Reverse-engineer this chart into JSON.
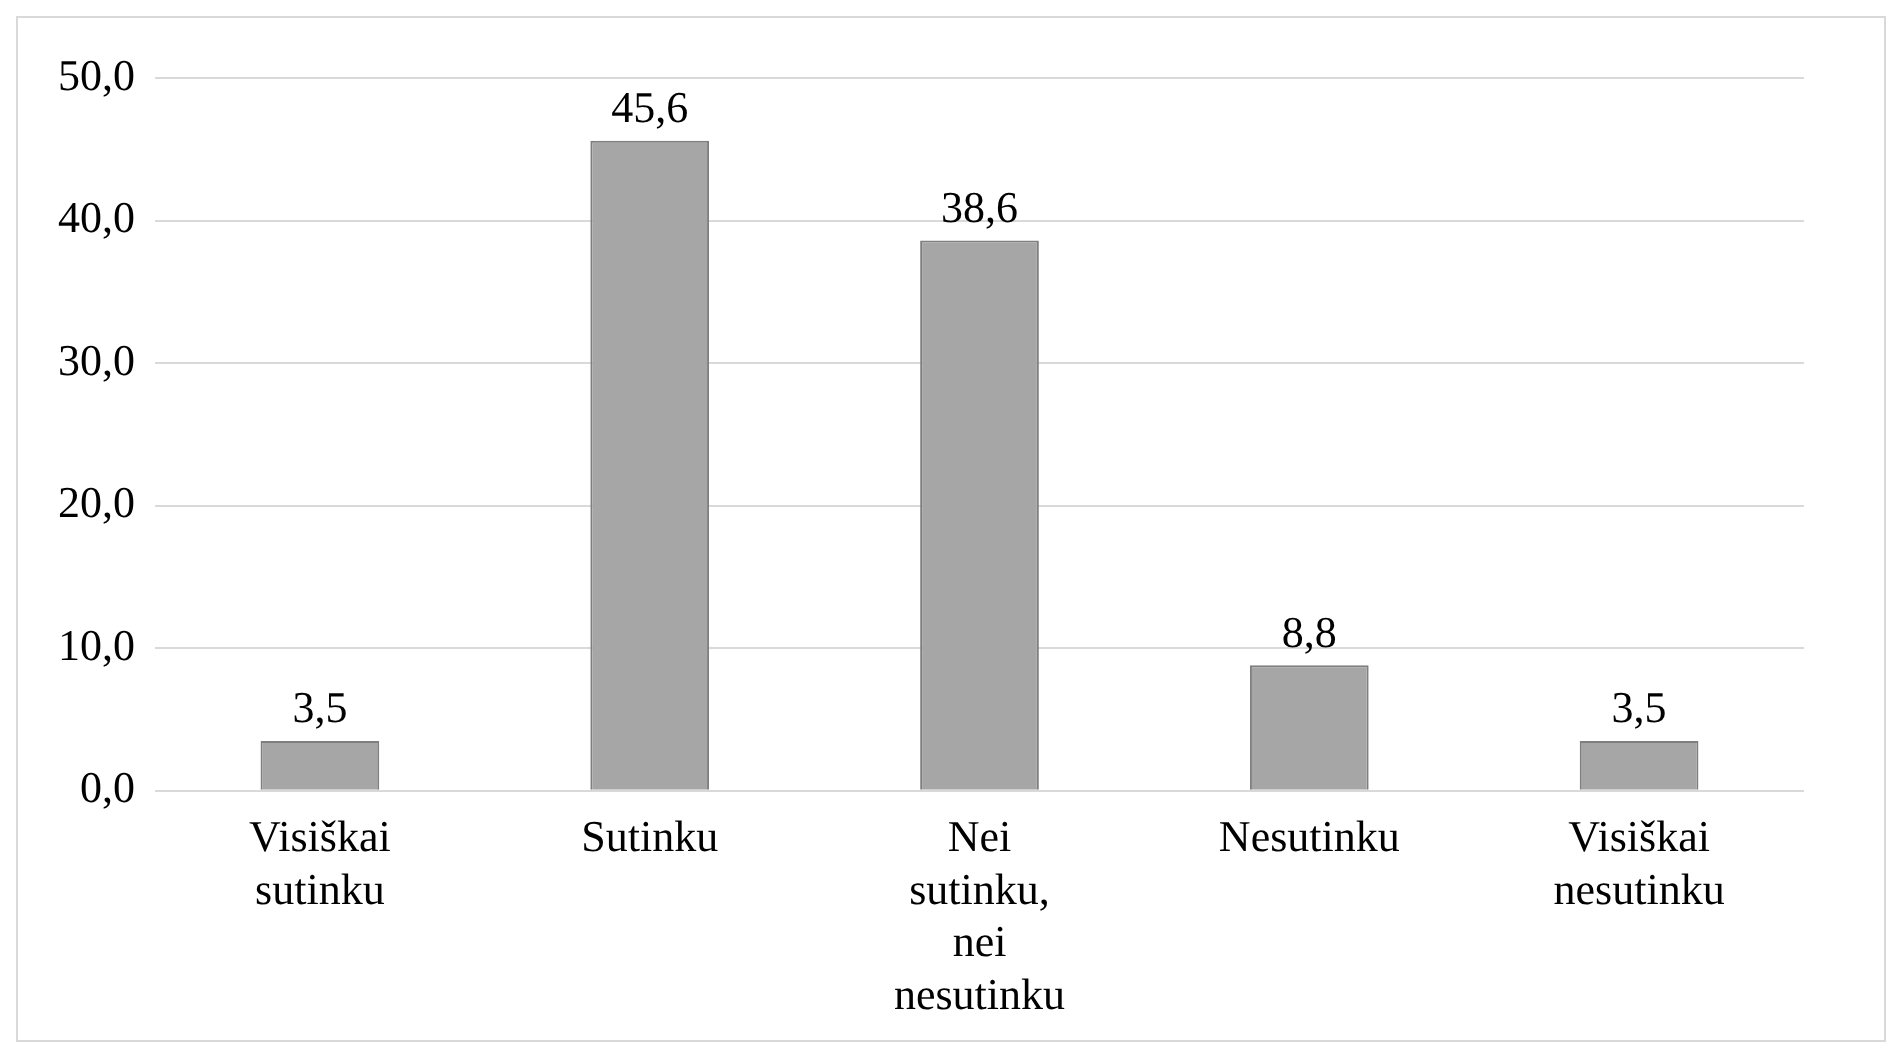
{
  "chart_data": {
    "type": "bar",
    "categories": [
      "Visiškai sutinku",
      "Sutinku",
      "Nei sutinku, nei nesutinku",
      "Nesutinku",
      "Visiškai nesutinku"
    ],
    "values": [
      3.5,
      45.6,
      38.6,
      8.8,
      3.5
    ],
    "color": "#a6a6a6",
    "value_labels": [
      "3,5",
      "45,6",
      "38,6",
      "8,8",
      "3,5"
    ],
    "ylim": [
      0,
      50
    ],
    "yticks": [
      {
        "value": 0,
        "label": "0,0"
      },
      {
        "value": 10,
        "label": "10,0"
      },
      {
        "value": 20,
        "label": "20,0"
      },
      {
        "value": 30,
        "label": "30,0"
      },
      {
        "value": 40,
        "label": "40,0"
      },
      {
        "value": 50,
        "label": "50,0"
      }
    ],
    "grid": "y",
    "legend": false
  }
}
